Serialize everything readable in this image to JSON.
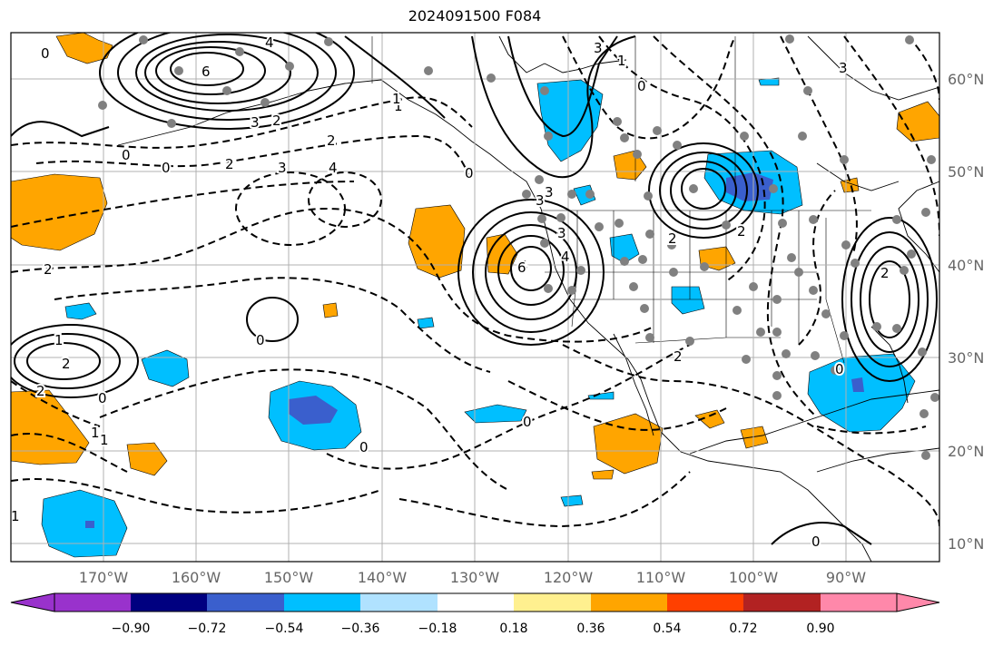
{
  "title": "2024091500 F084",
  "map": {
    "lon_labels": [
      "170°W",
      "160°W",
      "150°W",
      "140°W",
      "130°W",
      "120°W",
      "110°W",
      "100°W",
      "90°W"
    ],
    "lat_labels": [
      "60°N",
      "50°N",
      "40°N",
      "30°N",
      "20°N",
      "10°N"
    ],
    "contour_labels": [
      "0",
      "6",
      "4",
      "3",
      "2",
      "1",
      "0",
      "0",
      "3",
      "4",
      "2",
      "2",
      "4",
      "3",
      "3",
      "6",
      "1",
      "1",
      "2",
      "0",
      "0",
      "0",
      "2",
      "4",
      "2",
      "3",
      "0",
      "2",
      "1",
      "1",
      "2",
      "2",
      "1",
      "0",
      "2",
      "3",
      "0",
      "1",
      "0",
      "0",
      "3"
    ],
    "marker_color": "#808080",
    "shading_colors": {
      "positive": "#ffa500",
      "negative": "#00bfff",
      "strong_negative": "#3a5fcd"
    }
  },
  "colorbar": {
    "colors": [
      "#9932cc",
      "#000080",
      "#3a5fcd",
      "#00bfff",
      "#b0e2ff",
      "#ffffff",
      "#fff08f",
      "#ffa500",
      "#ff4000",
      "#b22222",
      "#ff88aa"
    ],
    "tick_labels": [
      "−0.90",
      "−0.72",
      "−0.54",
      "−0.36",
      "−0.18",
      "0.18",
      "0.36",
      "0.54",
      "0.72",
      "0.90"
    ]
  }
}
